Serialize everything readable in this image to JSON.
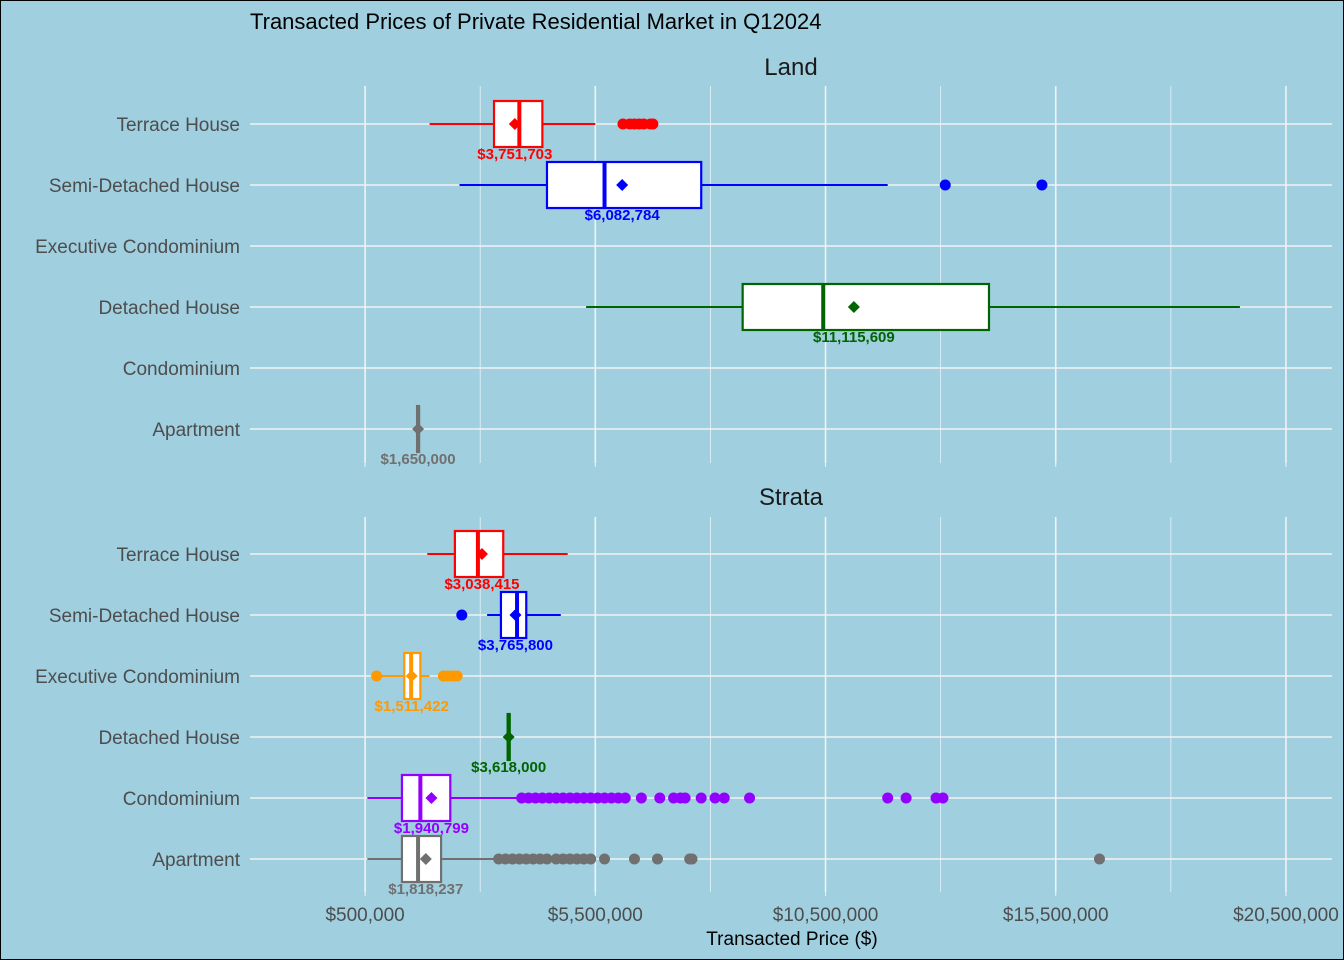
{
  "chart_data": {
    "type": "boxplot",
    "title": "Transacted Prices of Private Residential Market in Q12024",
    "xlabel": "Transacted Price ($)",
    "ylabel": "",
    "xlim": [
      -2000000,
      21500000
    ],
    "x_ticks": [
      500000,
      5500000,
      10500000,
      15500000,
      20500000
    ],
    "x_tick_labels": [
      "$500,000",
      "$5,500,000",
      "$10,500,000",
      "$15,500,000",
      "$20,500,000"
    ],
    "grid": true,
    "categories": [
      "Terrace House",
      "Semi-Detached House",
      "Executive Condominium",
      "Detached House",
      "Condominium",
      "Apartment"
    ],
    "colors": {
      "Terrace House": "#ff0000",
      "Semi-Detached House": "#0000ff",
      "Executive Condominium": "#ff9900",
      "Detached House": "#006400",
      "Condominium": "#9400ff",
      "Apartment": "#707070"
    },
    "panels": [
      {
        "name": "Land",
        "boxes": [
          {
            "category": "Terrace House",
            "whisker_low": 1900000,
            "q1": 3300000,
            "median": 3850000,
            "q3": 4350000,
            "whisker_high": 5500000,
            "mean": 3751703,
            "mean_label": "$3,751,703",
            "outliers": [
              6100000,
              6250000,
              6350000,
              6450000,
              6550000,
              6700000,
              6750000
            ]
          },
          {
            "category": "Semi-Detached House",
            "whisker_low": 2550000,
            "q1": 4450000,
            "median": 5700000,
            "q3": 7800000,
            "whisker_high": 11850000,
            "mean": 6082784,
            "mean_label": "$6,082,784",
            "outliers": [
              13100000,
              15200000
            ]
          },
          {
            "category": "Detached House",
            "whisker_low": 5300000,
            "q1": 8700000,
            "median": 10450000,
            "q3": 14050000,
            "whisker_high": 19500000,
            "mean": 11115609,
            "mean_label": "$11,115,609",
            "outliers": []
          },
          {
            "category": "Apartment",
            "whisker_low": 1650000,
            "q1": 1650000,
            "median": 1650000,
            "q3": 1650000,
            "whisker_high": 1650000,
            "mean": 1650000,
            "mean_label": "$1,650,000",
            "outliers": []
          }
        ]
      },
      {
        "name": "Strata",
        "boxes": [
          {
            "category": "Terrace House",
            "whisker_low": 1850000,
            "q1": 2450000,
            "median": 2950000,
            "q3": 3500000,
            "whisker_high": 4900000,
            "mean": 3038415,
            "mean_label": "$3,038,415",
            "outliers": []
          },
          {
            "category": "Semi-Detached House",
            "whisker_low": 3150000,
            "q1": 3450000,
            "median": 3800000,
            "q3": 4000000,
            "whisker_high": 4750000,
            "mean": 3765800,
            "mean_label": "$3,765,800",
            "outliers": [
              2600000
            ]
          },
          {
            "category": "Executive Condominium",
            "whisker_low": 750000,
            "q1": 1350000,
            "median": 1500000,
            "q3": 1700000,
            "whisker_high": 1900000,
            "mean": 1511422,
            "mean_label": "$1,511,422",
            "outliers": [
              750000,
              2200000,
              2300000,
              2400000,
              2450000,
              2500000
            ]
          },
          {
            "category": "Detached House",
            "whisker_low": 3618000,
            "q1": 3618000,
            "median": 3618000,
            "q3": 3618000,
            "whisker_high": 3618000,
            "mean": 3618000,
            "mean_label": "$3,618,000",
            "outliers": []
          },
          {
            "category": "Condominium",
            "whisker_low": 550000,
            "q1": 1300000,
            "median": 1700000,
            "q3": 2350000,
            "whisker_high": 3850000,
            "mean": 1940799,
            "mean_label": "$1,940,799",
            "outliers": [
              3900000,
              4050000,
              4200000,
              4350000,
              4500000,
              4650000,
              4800000,
              4950000,
              5100000,
              5250000,
              5400000,
              5550000,
              5700000,
              5850000,
              6000000,
              6150000,
              6500000,
              6900000,
              7200000,
              7350000,
              7450000,
              7800000,
              8100000,
              8300000,
              8850000,
              11850000,
              12250000,
              12900000,
              13050000
            ]
          },
          {
            "category": "Apartment",
            "whisker_low": 550000,
            "q1": 1300000,
            "median": 1650000,
            "q3": 2150000,
            "whisker_high": 3300000,
            "mean": 1818237,
            "mean_label": "$1,818,237",
            "outliers": [
              3400000,
              3550000,
              3700000,
              3850000,
              4000000,
              4150000,
              4300000,
              4450000,
              4650000,
              4800000,
              4950000,
              5100000,
              5250000,
              5400000,
              5700000,
              6350000,
              6850000,
              7550000,
              7600000,
              16450000
            ]
          }
        ]
      }
    ]
  }
}
